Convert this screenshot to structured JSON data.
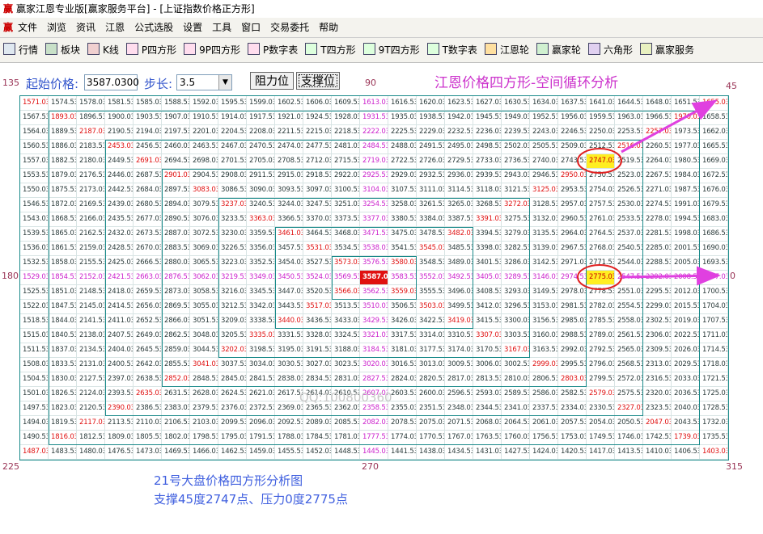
{
  "window": {
    "title": "赢家江恩专业版[赢家服务平台] - [上证指数价格正方形]",
    "logo": "赢",
    "menu": [
      "文件",
      "浏览",
      "资讯",
      "江恩",
      "公式选股",
      "设置",
      "工具",
      "窗口",
      "交易委托",
      "帮助"
    ],
    "toolbar": [
      "行情",
      "板块",
      "K线",
      "P四方形",
      "9P四方形",
      "P数字表",
      "T四方形",
      "9T四方形",
      "T数字表",
      "江恩轮",
      "赢家轮",
      "六角形",
      "赢家服务"
    ]
  },
  "controls": {
    "start_price_label": "起始价格:",
    "start_price": "3587.0300",
    "step_label": "步长:",
    "step": "3.5",
    "buttons": [
      "阻力位",
      "支撑位"
    ]
  },
  "chart_title": "江恩价格四方形-空间循环分析",
  "angles": {
    "top_left": "135",
    "top": "90",
    "top_right": "45",
    "left": "180",
    "right": "0",
    "bottom_left": "225",
    "bottom": "270",
    "bottom_right": "315"
  },
  "watermark": "QQ:100800360",
  "grid": {
    "rows": [
      [
        "1571.03",
        "1574.53",
        "1578.03",
        "1581.53",
        "1585.03",
        "1588.53",
        "1592.03",
        "1595.53",
        "1599.03",
        "1602.53",
        "1606.03",
        "1609.53",
        "1613.03",
        "1616.53",
        "1620.03",
        "1623.53",
        "1627.03",
        "1630.53",
        "1634.03",
        "1637.53",
        "1641.03",
        "1644.53",
        "1648.03",
        "1651.53",
        "1655.03"
      ],
      [
        "1567.53",
        "1893.03",
        "1896.53",
        "1900.03",
        "1903.53",
        "1907.03",
        "1910.53",
        "1914.03",
        "1917.53",
        "1921.03",
        "1924.53",
        "1928.03",
        "1931.53",
        "1935.03",
        "1938.53",
        "1942.03",
        "1945.53",
        "1949.03",
        "1952.53",
        "1956.03",
        "1959.53",
        "1963.03",
        "1966.53",
        "1970.03",
        "1658.53"
      ],
      [
        "1564.03",
        "1889.53",
        "2187.03",
        "2190.53",
        "2194.03",
        "2197.53",
        "2201.03",
        "2204.53",
        "2208.03",
        "2211.53",
        "2215.03",
        "2218.53",
        "2222.03",
        "2225.53",
        "2229.03",
        "2232.53",
        "2236.03",
        "2239.53",
        "2243.03",
        "2246.53",
        "2250.03",
        "2253.53",
        "2257.03",
        "1973.53",
        "1662.03"
      ],
      [
        "1560.53",
        "1886.03",
        "2183.53",
        "2453.03",
        "2456.53",
        "2460.03",
        "2463.53",
        "2467.03",
        "2470.53",
        "2474.03",
        "2477.53",
        "2481.03",
        "2484.53",
        "2488.03",
        "2491.53",
        "2495.03",
        "2498.53",
        "2502.03",
        "2505.53",
        "2509.03",
        "2512.53",
        "2516.03",
        "2260.53",
        "1977.03",
        "1665.53"
      ],
      [
        "1557.03",
        "1882.53",
        "2180.03",
        "2449.53",
        "2691.03",
        "2694.53",
        "2698.03",
        "2701.53",
        "2705.03",
        "2708.53",
        "2712.03",
        "2715.53",
        "2719.03",
        "2722.53",
        "2726.03",
        "2729.53",
        "2733.03",
        "2736.53",
        "2740.03",
        "2743.53",
        "2747.03",
        "2519.53",
        "2264.03",
        "1980.53",
        "1669.03"
      ],
      [
        "1553.53",
        "1879.03",
        "2176.53",
        "2446.03",
        "2687.53",
        "2901.03",
        "2904.53",
        "2908.03",
        "2911.53",
        "2915.03",
        "2918.53",
        "2922.03",
        "2925.53",
        "2929.03",
        "2932.53",
        "2936.03",
        "2939.53",
        "2943.03",
        "2946.53",
        "2950.03",
        "2750.53",
        "2523.03",
        "2267.53",
        "1984.03",
        "1672.53"
      ],
      [
        "1550.03",
        "1875.53",
        "2173.03",
        "2442.53",
        "2684.03",
        "2897.53",
        "3083.03",
        "3086.53",
        "3090.03",
        "3093.53",
        "3097.03",
        "3100.53",
        "3104.03",
        "3107.53",
        "3111.03",
        "3114.53",
        "3118.03",
        "3121.53",
        "3125.03",
        "2953.53",
        "2754.03",
        "2526.53",
        "2271.03",
        "1987.53",
        "1676.03"
      ],
      [
        "1546.53",
        "1872.03",
        "2169.53",
        "2439.03",
        "2680.53",
        "2894.03",
        "3079.53",
        "3237.03",
        "3240.53",
        "3244.03",
        "3247.53",
        "3251.03",
        "3254.53",
        "3258.03",
        "3261.53",
        "3265.03",
        "3268.53",
        "3272.03",
        "3128.53",
        "2957.03",
        "2757.53",
        "2530.03",
        "2274.53",
        "1991.03",
        "1679.53"
      ],
      [
        "1543.03",
        "1868.53",
        "2166.03",
        "2435.53",
        "2677.03",
        "2890.53",
        "3076.03",
        "3233.53",
        "3363.03",
        "3366.53",
        "3370.03",
        "3373.53",
        "3377.03",
        "3380.53",
        "3384.03",
        "3387.53",
        "3391.03",
        "3275.53",
        "3132.03",
        "2960.53",
        "2761.03",
        "2533.53",
        "2278.03",
        "1994.53",
        "1683.03"
      ],
      [
        "1539.53",
        "1865.03",
        "2162.53",
        "2432.03",
        "2673.53",
        "2887.03",
        "3072.53",
        "3230.03",
        "3359.53",
        "3461.03",
        "3464.53",
        "3468.03",
        "3471.53",
        "3475.03",
        "3478.53",
        "3482.03",
        "3394.53",
        "3279.03",
        "3135.53",
        "2964.03",
        "2764.53",
        "2537.03",
        "2281.53",
        "1998.03",
        "1686.53"
      ],
      [
        "1536.03",
        "1861.53",
        "2159.03",
        "2428.53",
        "2670.03",
        "2883.53",
        "3069.03",
        "3226.53",
        "3356.03",
        "3457.53",
        "3531.03",
        "3534.53",
        "3538.03",
        "3541.53",
        "3545.03",
        "3485.53",
        "3398.03",
        "3282.53",
        "3139.03",
        "2967.53",
        "2768.03",
        "2540.53",
        "2285.03",
        "2001.53",
        "1690.03"
      ],
      [
        "1532.53",
        "1858.03",
        "2155.53",
        "2425.03",
        "2666.53",
        "2880.03",
        "3065.53",
        "3223.03",
        "3352.53",
        "3454.03",
        "3527.53",
        "3573.03",
        "3576.53",
        "3580.03",
        "3548.53",
        "3489.03",
        "3401.53",
        "3286.03",
        "3142.53",
        "2971.03",
        "2771.53",
        "2544.03",
        "2288.53",
        "2005.03",
        "1693.53"
      ],
      [
        "1529.03",
        "1854.53",
        "2152.03",
        "2421.53",
        "2663.03",
        "2876.53",
        "3062.03",
        "3219.53",
        "3349.03",
        "3450.53",
        "3524.03",
        "3569.53",
        "3587.03",
        "3583.53",
        "3552.03",
        "3492.53",
        "3405.03",
        "3289.53",
        "3146.03",
        "2974.53",
        "2775.03",
        "2547.53",
        "2292.03",
        "2008.53",
        "1697.03"
      ],
      [
        "1525.53",
        "1851.03",
        "2148.53",
        "2418.03",
        "2659.53",
        "2873.03",
        "3058.53",
        "3216.03",
        "3345.53",
        "3447.03",
        "3520.53",
        "3566.03",
        "3562.53",
        "3559.03",
        "3555.53",
        "3496.03",
        "3408.53",
        "3293.03",
        "3149.53",
        "2978.03",
        "2778.53",
        "2551.03",
        "2295.53",
        "2012.03",
        "1700.53"
      ],
      [
        "1522.03",
        "1847.53",
        "2145.03",
        "2414.53",
        "2656.03",
        "2869.53",
        "3055.03",
        "3212.53",
        "3342.03",
        "3443.53",
        "3517.03",
        "3513.53",
        "3510.03",
        "3506.53",
        "3503.03",
        "3499.53",
        "3412.03",
        "3296.53",
        "3153.03",
        "2981.53",
        "2782.03",
        "2554.53",
        "2299.03",
        "2015.53",
        "1704.03"
      ],
      [
        "1518.53",
        "1844.03",
        "2141.53",
        "2411.03",
        "2652.53",
        "2866.03",
        "3051.53",
        "3209.03",
        "3338.53",
        "3440.03",
        "3436.53",
        "3433.03",
        "3429.53",
        "3426.03",
        "3422.53",
        "3419.03",
        "3415.53",
        "3300.03",
        "3156.53",
        "2985.03",
        "2785.53",
        "2558.03",
        "2302.53",
        "2019.03",
        "1707.53"
      ],
      [
        "1515.03",
        "1840.53",
        "2138.03",
        "2407.53",
        "2649.03",
        "2862.53",
        "3048.03",
        "3205.53",
        "3335.03",
        "3331.53",
        "3328.03",
        "3324.53",
        "3321.03",
        "3317.53",
        "3314.03",
        "3310.53",
        "3307.03",
        "3303.53",
        "3160.03",
        "2988.53",
        "2789.03",
        "2561.53",
        "2306.03",
        "2022.53",
        "1711.03"
      ],
      [
        "1511.53",
        "1837.03",
        "2134.53",
        "2404.03",
        "2645.53",
        "2859.03",
        "3044.53",
        "3202.03",
        "3198.53",
        "3195.03",
        "3191.53",
        "3188.03",
        "3184.53",
        "3181.03",
        "3177.53",
        "3174.03",
        "3170.53",
        "3167.03",
        "3163.53",
        "2992.03",
        "2792.53",
        "2565.03",
        "2309.53",
        "2026.03",
        "1714.53"
      ],
      [
        "1508.03",
        "1833.53",
        "2131.03",
        "2400.53",
        "2642.03",
        "2855.53",
        "3041.03",
        "3037.53",
        "3034.03",
        "3030.53",
        "3027.03",
        "3023.53",
        "3020.03",
        "3016.53",
        "3013.03",
        "3009.53",
        "3006.03",
        "3002.53",
        "2999.03",
        "2995.53",
        "2796.03",
        "2568.53",
        "2313.03",
        "2029.53",
        "1718.03"
      ],
      [
        "1504.53",
        "1830.03",
        "2127.53",
        "2397.03",
        "2638.53",
        "2852.03",
        "2848.53",
        "2845.03",
        "2841.53",
        "2838.03",
        "2834.53",
        "2831.03",
        "2827.53",
        "2824.03",
        "2820.53",
        "2817.03",
        "2813.53",
        "2810.03",
        "2806.53",
        "2803.03",
        "2799.53",
        "2572.03",
        "2316.53",
        "2033.03",
        "1721.53"
      ],
      [
        "1501.03",
        "1826.53",
        "2124.03",
        "2393.53",
        "2635.03",
        "2631.53",
        "2628.03",
        "2624.53",
        "2621.03",
        "2617.53",
        "2614.03",
        "2610.53",
        "2607.03",
        "2603.53",
        "2600.03",
        "2596.53",
        "2593.03",
        "2589.53",
        "2586.03",
        "2582.53",
        "2579.03",
        "2575.53",
        "2320.03",
        "2036.53",
        "1725.03"
      ],
      [
        "1497.53",
        "1823.03",
        "2120.53",
        "2390.03",
        "2386.53",
        "2383.03",
        "2379.53",
        "2376.03",
        "2372.53",
        "2369.03",
        "2365.53",
        "2362.03",
        "2358.53",
        "2355.03",
        "2351.53",
        "2348.03",
        "2344.53",
        "2341.03",
        "2337.53",
        "2334.03",
        "2330.53",
        "2327.03",
        "2323.53",
        "2040.03",
        "1728.53"
      ],
      [
        "1494.03",
        "1819.53",
        "2117.03",
        "2113.53",
        "2110.03",
        "2106.53",
        "2103.03",
        "2099.53",
        "2096.03",
        "2092.53",
        "2089.03",
        "2085.53",
        "2082.03",
        "2078.53",
        "2075.03",
        "2071.53",
        "2068.03",
        "2064.53",
        "2061.03",
        "2057.53",
        "2054.03",
        "2050.53",
        "2047.03",
        "2043.53",
        "1732.03"
      ],
      [
        "1490.53",
        "1816.03",
        "1812.53",
        "1809.03",
        "1805.53",
        "1802.03",
        "1798.53",
        "1795.03",
        "1791.53",
        "1788.03",
        "1784.53",
        "1781.03",
        "1777.53",
        "1774.03",
        "1770.53",
        "1767.03",
        "1763.53",
        "1760.03",
        "1756.53",
        "1753.03",
        "1749.53",
        "1746.03",
        "1742.53",
        "1739.03",
        "1735.53"
      ],
      [
        "1487.03",
        "1483.53",
        "1480.03",
        "1476.53",
        "1473.03",
        "1469.53",
        "1466.03",
        "1462.53",
        "1459.03",
        "1455.53",
        "1452.03",
        "1448.53",
        "1445.03",
        "1441.53",
        "1438.03",
        "1434.53",
        "1431.03",
        "1427.53",
        "1424.03",
        "1420.53",
        "1417.03",
        "1413.53",
        "1410.03",
        "1406.53",
        "1403.03"
      ]
    ]
  },
  "caption": [
    "21号大盘价格四方形分析图",
    "支撑45度2747点、压力0度2775点"
  ]
}
